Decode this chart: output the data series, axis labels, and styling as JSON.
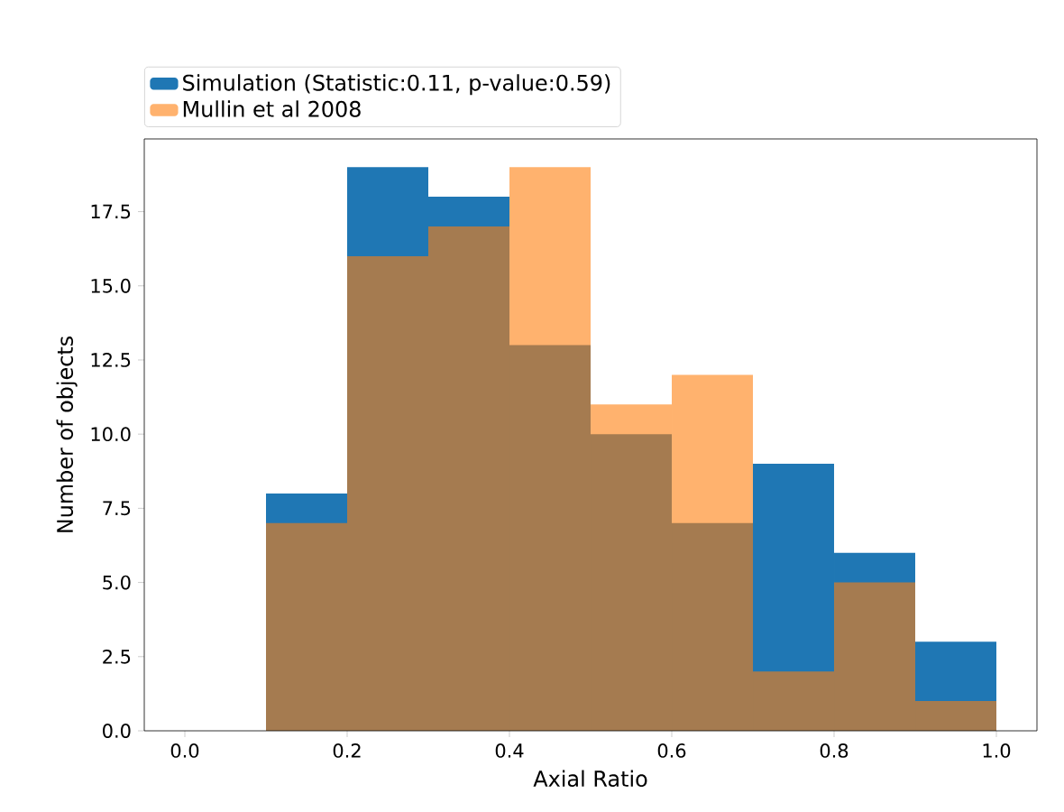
{
  "chart_data": {
    "type": "histogram",
    "xlabel": "Axial Ratio",
    "ylabel": "Number of objects",
    "bins": [
      0.0,
      0.1,
      0.2,
      0.3,
      0.4,
      0.5,
      0.6,
      0.7,
      0.8,
      0.9,
      1.0
    ],
    "series": [
      {
        "name": "Simulation (Statistic:0.11, p-value:0.59)",
        "color": "#1f77b4",
        "values": [
          0,
          8,
          19,
          18,
          13,
          10,
          7,
          9,
          6,
          3
        ]
      },
      {
        "name": "Mullin et al 2008",
        "color": "#ff7f0e",
        "values": [
          0,
          7,
          16,
          17,
          19,
          11,
          12,
          2,
          5,
          1
        ]
      }
    ],
    "xlim": [
      -0.05,
      1.05
    ],
    "ylim": [
      0,
      19.95
    ],
    "xticks": [
      {
        "value": 0,
        "label": "0.0"
      },
      {
        "value": 0.2,
        "label": "0.2"
      },
      {
        "value": 0.4,
        "label": "0.4"
      },
      {
        "value": 0.6,
        "label": "0.6"
      },
      {
        "value": 0.8,
        "label": "0.8"
      },
      {
        "value": 1,
        "label": "1.0"
      }
    ],
    "yticks": [
      {
        "value": 0,
        "label": "0.0"
      },
      {
        "value": 2.5,
        "label": "2.5"
      },
      {
        "value": 5,
        "label": "5.0"
      },
      {
        "value": 7.5,
        "label": "7.5"
      },
      {
        "value": 10,
        "label": "10.0"
      },
      {
        "value": 12.5,
        "label": "12.5"
      },
      {
        "value": 15,
        "label": "15.0"
      },
      {
        "value": 17.5,
        "label": "17.5"
      }
    ],
    "legend": "top left",
    "grid": false
  }
}
